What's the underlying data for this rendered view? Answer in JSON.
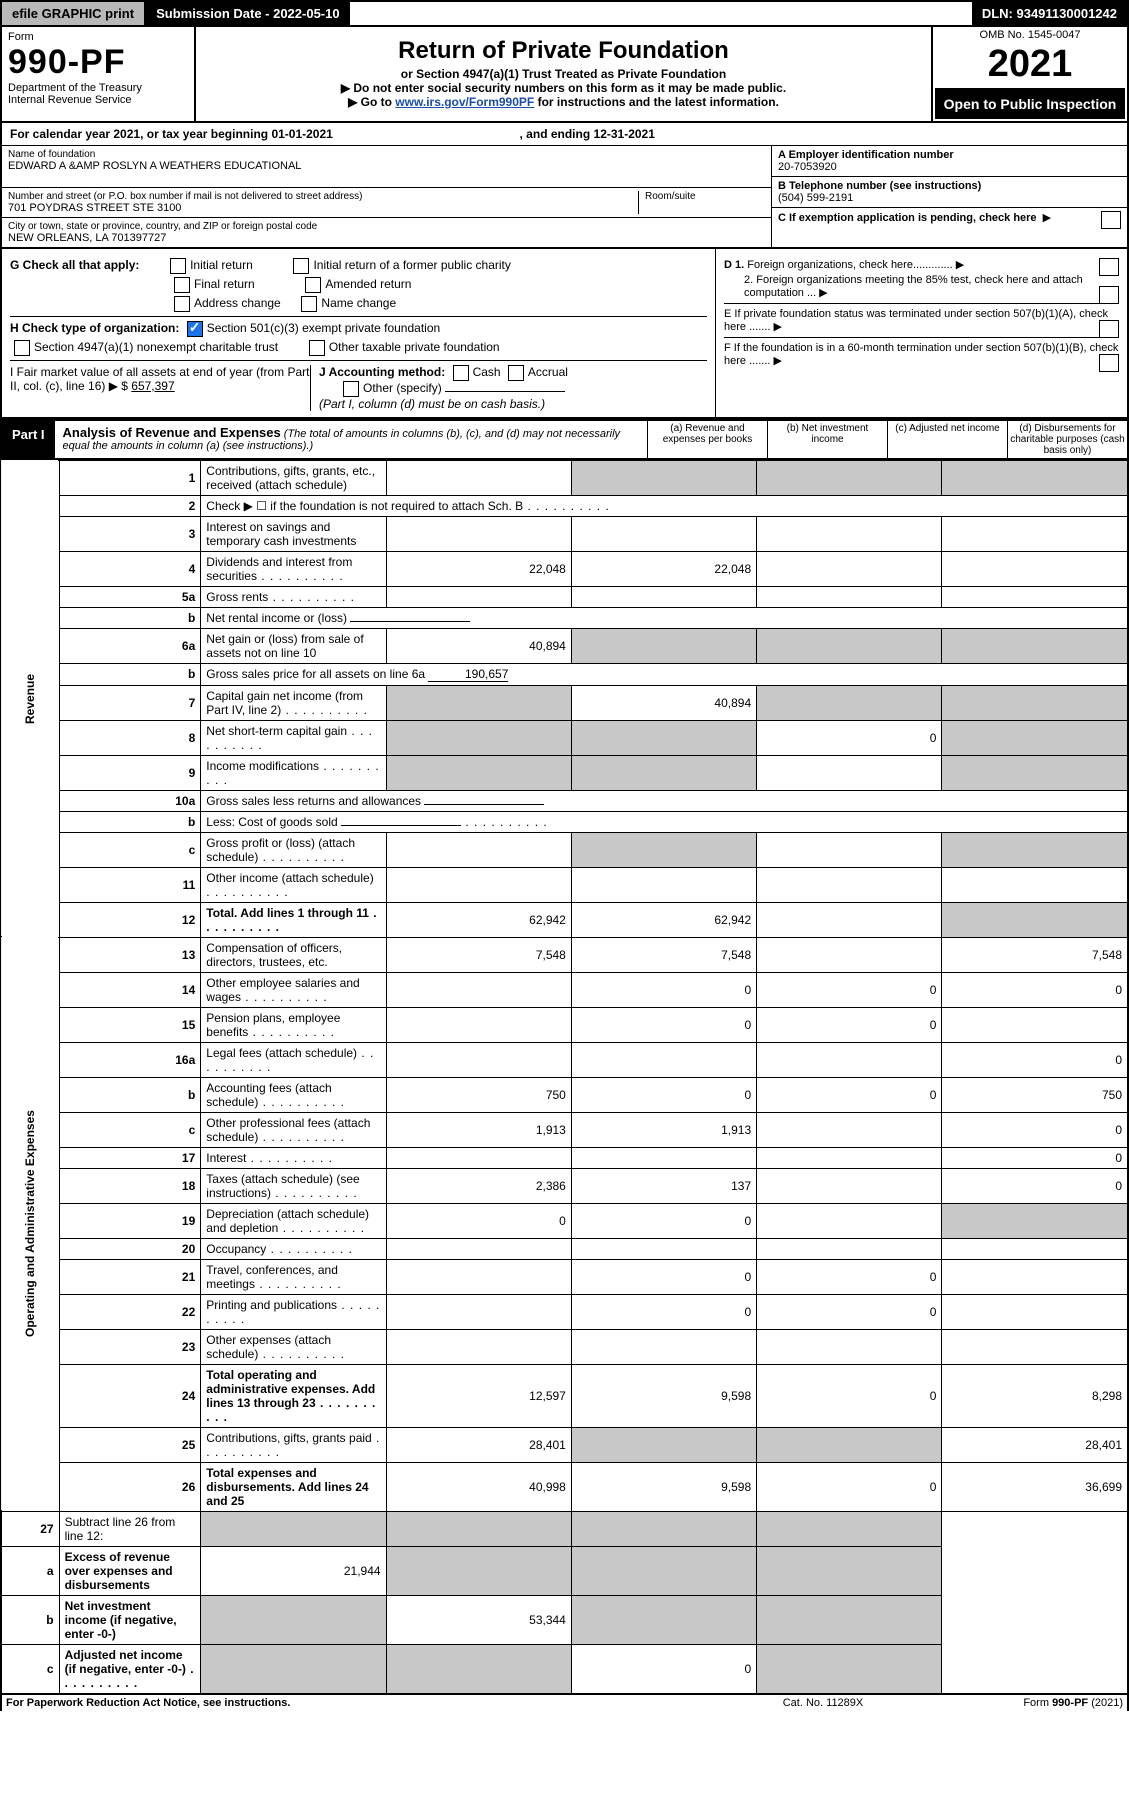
{
  "topbar": {
    "efile": "efile GRAPHIC print",
    "subdate_label": "Submission Date - 2022-05-10",
    "dln": "DLN: 93491130001242"
  },
  "header": {
    "form_label": "Form",
    "form_no": "990-PF",
    "dept": "Department of the Treasury",
    "irs": "Internal Revenue Service",
    "title": "Return of Private Foundation",
    "subtitle": "or Section 4947(a)(1) Trust Treated as Private Foundation",
    "note1": "▶ Do not enter social security numbers on this form as it may be made public.",
    "note2_pre": "▶ Go to ",
    "note2_url": "www.irs.gov/Form990PF",
    "note2_post": " for instructions and the latest information.",
    "omb": "OMB No. 1545-0047",
    "year": "2021",
    "open": "Open to Public Inspection"
  },
  "cal": {
    "text": "For calendar year 2021, or tax year beginning 01-01-2021",
    "end": ", and ending 12-31-2021"
  },
  "id": {
    "name_lbl": "Name of foundation",
    "name": "EDWARD A &AMP ROSLYN A WEATHERS EDUCATIONAL",
    "addr_lbl": "Number and street (or P.O. box number if mail is not delivered to street address)",
    "addr": "701 POYDRAS STREET STE 3100",
    "room_lbl": "Room/suite",
    "city_lbl": "City or town, state or province, country, and ZIP or foreign postal code",
    "city": "NEW ORLEANS, LA  701397727",
    "a_lbl": "A Employer identification number",
    "a_val": "20-7053920",
    "b_lbl": "B Telephone number (see instructions)",
    "b_val": "(504) 599-2191",
    "c_lbl": "C If exemption application is pending, check here"
  },
  "g": {
    "label": "G Check all that apply:",
    "opts": [
      "Initial return",
      "Final return",
      "Address change",
      "Initial return of a former public charity",
      "Amended return",
      "Name change"
    ]
  },
  "h": {
    "label": "H Check type of organization:",
    "opt1": "Section 501(c)(3) exempt private foundation",
    "opt2": "Section 4947(a)(1) nonexempt charitable trust",
    "opt3": "Other taxable private foundation"
  },
  "i": {
    "label": "I Fair market value of all assets at end of year (from Part II, col. (c), line 16) ▶ $",
    "val": "657,397"
  },
  "j": {
    "label": "J Accounting method:",
    "cash": "Cash",
    "accrual": "Accrual",
    "other": "Other (specify)",
    "note": "(Part I, column (d) must be on cash basis.)"
  },
  "right": {
    "d1": "D 1. Foreign organizations, check here.............",
    "d2": "2. Foreign organizations meeting the 85% test, check here and attach computation ...",
    "e": "E If private foundation status was terminated under section 507(b)(1)(A), check here .......",
    "f": "F If the foundation is in a 60-month termination under section 507(b)(1)(B), check here ......."
  },
  "part1": {
    "tag": "Part I",
    "title": "Analysis of Revenue and Expenses",
    "note": "(The total of amounts in columns (b), (c), and (d) may not necessarily equal the amounts in column (a) (see instructions).)",
    "col_a": "(a) Revenue and expenses per books",
    "col_b": "(b) Net investment income",
    "col_c": "(c) Adjusted net income",
    "col_d": "(d) Disbursements for charitable purposes (cash basis only)"
  },
  "sidelabels": {
    "rev": "Revenue",
    "exp": "Operating and Administrative Expenses"
  },
  "rows": [
    {
      "n": "1",
      "d": "Contributions, gifts, grants, etc., received (attach schedule)",
      "a": "",
      "b": "",
      "c": "",
      "dd": "",
      "sb": true,
      "sc": true,
      "sd": true
    },
    {
      "n": "2",
      "d": "Check ▶ ☐ if the foundation is not required to attach Sch. B",
      "dots": true,
      "nocols": true
    },
    {
      "n": "3",
      "d": "Interest on savings and temporary cash investments",
      "a": "",
      "b": "",
      "c": "",
      "dd": ""
    },
    {
      "n": "4",
      "d": "Dividends and interest from securities",
      "dots": true,
      "a": "22,048",
      "b": "22,048",
      "c": "",
      "dd": ""
    },
    {
      "n": "5a",
      "d": "Gross rents",
      "dots": true,
      "a": "",
      "b": "",
      "c": "",
      "dd": ""
    },
    {
      "n": "b",
      "d": "Net rental income or (loss)",
      "inline": true,
      "nocols": true
    },
    {
      "n": "6a",
      "d": "Net gain or (loss) from sale of assets not on line 10",
      "a": "40,894",
      "b": "",
      "c": "",
      "dd": "",
      "sb": true,
      "sc": true,
      "sd": true
    },
    {
      "n": "b",
      "d": "Gross sales price for all assets on line 6a",
      "inline": "190,657",
      "nocols": true
    },
    {
      "n": "7",
      "d": "Capital gain net income (from Part IV, line 2)",
      "dots": true,
      "sa": true,
      "b": "40,894",
      "c": "",
      "dd": "",
      "sc": true,
      "sd": true
    },
    {
      "n": "8",
      "d": "Net short-term capital gain",
      "dots": true,
      "sa": true,
      "sb": true,
      "c": "0",
      "sd": true
    },
    {
      "n": "9",
      "d": "Income modifications",
      "dots": true,
      "sa": true,
      "sb": true,
      "c": "",
      "sd": true
    },
    {
      "n": "10a",
      "d": "Gross sales less returns and allowances",
      "inline": true,
      "nocols": true
    },
    {
      "n": "b",
      "d": "Less: Cost of goods sold",
      "dots": true,
      "inline": true,
      "nocols": true
    },
    {
      "n": "c",
      "d": "Gross profit or (loss) (attach schedule)",
      "dots": true,
      "a": "",
      "sb": true,
      "c": "",
      "sd": true
    },
    {
      "n": "11",
      "d": "Other income (attach schedule)",
      "dots": true,
      "a": "",
      "b": "",
      "c": "",
      "dd": ""
    },
    {
      "n": "12",
      "d": "Total. Add lines 1 through 11",
      "dots": true,
      "bold": true,
      "a": "62,942",
      "b": "62,942",
      "c": "",
      "dd": "",
      "sd": true
    }
  ],
  "exprows": [
    {
      "n": "13",
      "d": "Compensation of officers, directors, trustees, etc.",
      "a": "7,548",
      "b": "7,548",
      "c": "",
      "dd": "7,548"
    },
    {
      "n": "14",
      "d": "Other employee salaries and wages",
      "dots": true,
      "a": "",
      "b": "0",
      "c": "0",
      "dd": "0"
    },
    {
      "n": "15",
      "d": "Pension plans, employee benefits",
      "dots": true,
      "a": "",
      "b": "0",
      "c": "0",
      "dd": ""
    },
    {
      "n": "16a",
      "d": "Legal fees (attach schedule)",
      "dots": true,
      "a": "",
      "b": "",
      "c": "",
      "dd": "0"
    },
    {
      "n": "b",
      "d": "Accounting fees (attach schedule)",
      "dots": true,
      "a": "750",
      "b": "0",
      "c": "0",
      "dd": "750"
    },
    {
      "n": "c",
      "d": "Other professional fees (attach schedule)",
      "dots": true,
      "a": "1,913",
      "b": "1,913",
      "c": "",
      "dd": "0"
    },
    {
      "n": "17",
      "d": "Interest",
      "dots": true,
      "a": "",
      "b": "",
      "c": "",
      "dd": "0"
    },
    {
      "n": "18",
      "d": "Taxes (attach schedule) (see instructions)",
      "dots": true,
      "a": "2,386",
      "b": "137",
      "c": "",
      "dd": "0"
    },
    {
      "n": "19",
      "d": "Depreciation (attach schedule) and depletion",
      "dots": true,
      "a": "0",
      "b": "0",
      "c": "",
      "dd": "",
      "sd": true
    },
    {
      "n": "20",
      "d": "Occupancy",
      "dots": true,
      "a": "",
      "b": "",
      "c": "",
      "dd": ""
    },
    {
      "n": "21",
      "d": "Travel, conferences, and meetings",
      "dots": true,
      "a": "",
      "b": "0",
      "c": "0",
      "dd": ""
    },
    {
      "n": "22",
      "d": "Printing and publications",
      "dots": true,
      "a": "",
      "b": "0",
      "c": "0",
      "dd": ""
    },
    {
      "n": "23",
      "d": "Other expenses (attach schedule)",
      "dots": true,
      "a": "",
      "b": "",
      "c": "",
      "dd": ""
    },
    {
      "n": "24",
      "d": "Total operating and administrative expenses. Add lines 13 through 23",
      "dots": true,
      "bold": true,
      "a": "12,597",
      "b": "9,598",
      "c": "0",
      "dd": "8,298"
    },
    {
      "n": "25",
      "d": "Contributions, gifts, grants paid",
      "dots": true,
      "a": "28,401",
      "sb": true,
      "sc": true,
      "dd": "28,401"
    },
    {
      "n": "26",
      "d": "Total expenses and disbursements. Add lines 24 and 25",
      "bold": true,
      "a": "40,998",
      "b": "9,598",
      "c": "0",
      "dd": "36,699"
    }
  ],
  "bottomrows": [
    {
      "n": "27",
      "d": "Subtract line 26 from line 12:",
      "sa": true,
      "sb": true,
      "sc": true,
      "sd": true
    },
    {
      "n": "a",
      "d": "Excess of revenue over expenses and disbursements",
      "bold": true,
      "a": "21,944",
      "sb": true,
      "sc": true,
      "sd": true
    },
    {
      "n": "b",
      "d": "Net investment income (if negative, enter -0-)",
      "bold": true,
      "sa": true,
      "b": "53,344",
      "sc": true,
      "sd": true
    },
    {
      "n": "c",
      "d": "Adjusted net income (if negative, enter -0-)",
      "bold": true,
      "dots": true,
      "sa": true,
      "sb": true,
      "c": "0",
      "sd": true
    }
  ],
  "footer": {
    "l": "For Paperwork Reduction Act Notice, see instructions.",
    "m": "Cat. No. 11289X",
    "r": "Form 990-PF (2021)"
  }
}
